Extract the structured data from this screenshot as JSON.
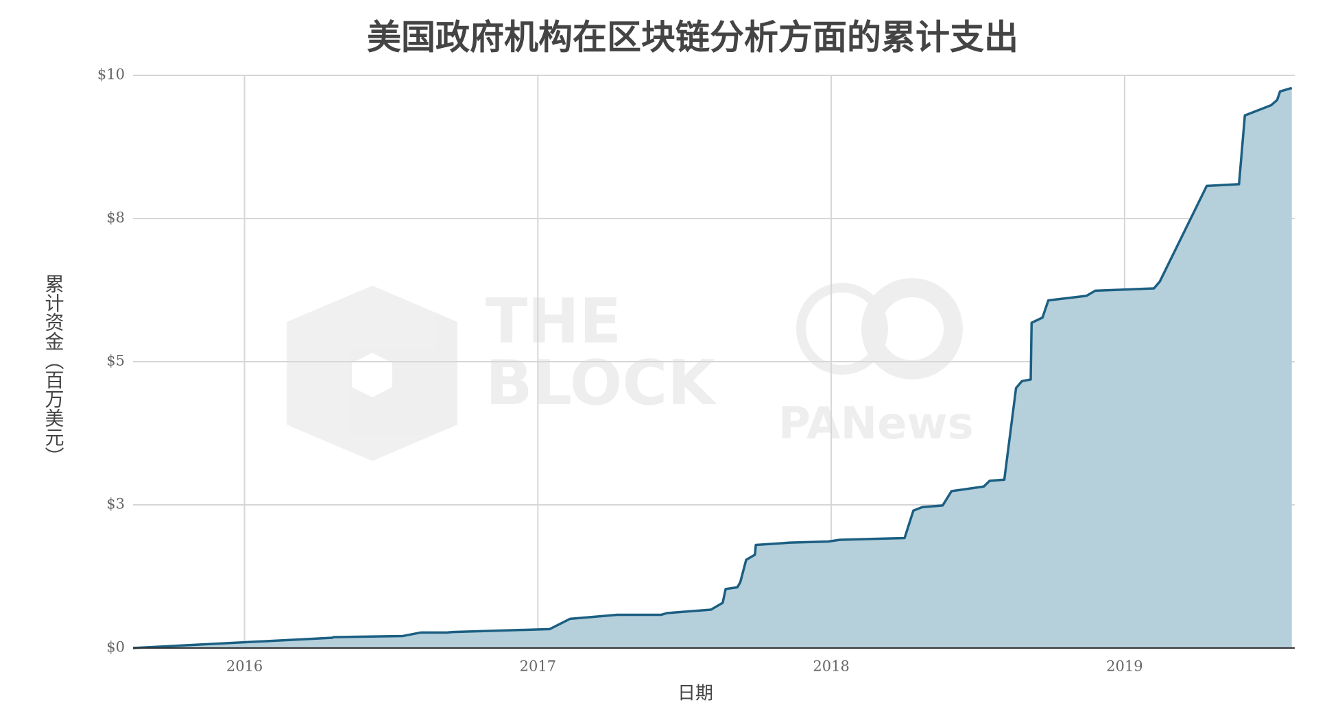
{
  "chart_data": {
    "type": "area",
    "title": "美国政府机构在区块链分析方面的累计支出",
    "x_label": "日期",
    "y_label": "累计资金（百万美元）",
    "watermarks": [
      "THE",
      "BLOCK",
      "PANews"
    ],
    "x": [
      2015.62,
      2016.3,
      2016.303,
      2016.54,
      2016.6,
      2016.69,
      2016.71,
      2017.04,
      2017.11,
      2017.27,
      2017.42,
      2017.44,
      2017.59,
      2017.63,
      2017.64,
      2017.68,
      2017.69,
      2017.71,
      2017.74,
      2017.743,
      2017.86,
      2017.99,
      2018.03,
      2018.25,
      2018.28,
      2018.31,
      2018.38,
      2018.41,
      2018.52,
      2018.54,
      2018.59,
      2018.63,
      2018.65,
      2018.68,
      2018.683,
      2018.72,
      2018.74,
      2018.87,
      2018.9,
      2019.1,
      2019.12,
      2019.28,
      2019.39,
      2019.41,
      2019.5,
      2019.52,
      2019.53,
      2019.57
    ],
    "series": [
      {
        "name": "累计支出",
        "color": "#1b5f82",
        "fill": "#b5cfdb",
        "values": [
          0,
          0.18,
          0.19,
          0.21,
          0.27,
          0.27,
          0.28,
          0.33,
          0.51,
          0.58,
          0.58,
          0.61,
          0.67,
          0.79,
          1.03,
          1.06,
          1.15,
          1.54,
          1.63,
          1.8,
          1.84,
          1.86,
          1.89,
          1.92,
          2.4,
          2.46,
          2.49,
          2.74,
          2.82,
          2.92,
          2.94,
          4.54,
          4.66,
          4.69,
          5.68,
          5.77,
          6.07,
          6.15,
          6.24,
          6.28,
          6.4,
          8.07,
          8.1,
          9.3,
          9.48,
          9.57,
          9.72,
          9.78
        ]
      }
    ],
    "xlim": [
      2015.62,
      2019.58
    ],
    "xticks": [
      2016,
      2017,
      2018,
      2019
    ],
    "ylim": [
      0,
      10
    ],
    "yticks": [
      {
        "value": 0,
        "label": "$0"
      },
      {
        "value": 2.5,
        "label": "$3"
      },
      {
        "value": 5,
        "label": "$5"
      },
      {
        "value": 7.5,
        "label": "$8"
      },
      {
        "value": 10,
        "label": "$10"
      }
    ],
    "grid": true
  }
}
